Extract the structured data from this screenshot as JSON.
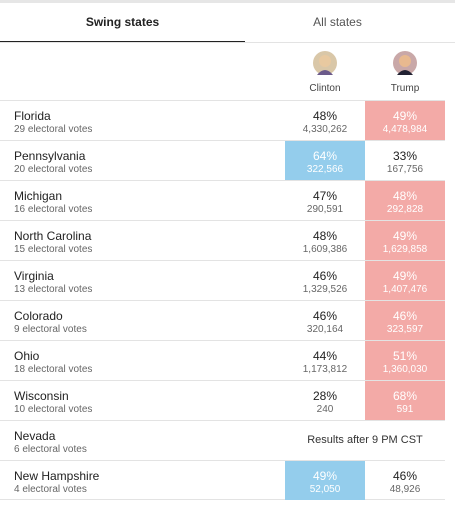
{
  "tabs": [
    "Swing states",
    "All states"
  ],
  "candidates": [
    "Clinton",
    "Trump"
  ],
  "rows": [
    {
      "state": "Florida",
      "electoral": "29 electoral votes",
      "clinton": {
        "pct": "48%",
        "votes": "4,330,262"
      },
      "trump": {
        "pct": "49%",
        "votes": "4,478,984"
      }
    },
    {
      "state": "Pennsylvania",
      "electoral": "20 electoral votes",
      "clinton": {
        "pct": "64%",
        "votes": "322,566"
      },
      "trump": {
        "pct": "33%",
        "votes": "167,756"
      }
    },
    {
      "state": "Michigan",
      "electoral": "16 electoral votes",
      "clinton": {
        "pct": "47%",
        "votes": "290,591"
      },
      "trump": {
        "pct": "48%",
        "votes": "292,828"
      }
    },
    {
      "state": "North Carolina",
      "electoral": "15 electoral votes",
      "clinton": {
        "pct": "48%",
        "votes": "1,609,386"
      },
      "trump": {
        "pct": "49%",
        "votes": "1,629,858"
      }
    },
    {
      "state": "Virginia",
      "electoral": "13 electoral votes",
      "clinton": {
        "pct": "46%",
        "votes": "1,329,526"
      },
      "trump": {
        "pct": "49%",
        "votes": "1,407,476"
      }
    },
    {
      "state": "Colorado",
      "electoral": "9 electoral votes",
      "clinton": {
        "pct": "46%",
        "votes": "320,164"
      },
      "trump": {
        "pct": "46%",
        "votes": "323,597"
      }
    },
    {
      "state": "Ohio",
      "electoral": "18 electoral votes",
      "clinton": {
        "pct": "44%",
        "votes": "1,173,812"
      },
      "trump": {
        "pct": "51%",
        "votes": "1,360,030"
      }
    },
    {
      "state": "Wisconsin",
      "electoral": "10 electoral votes",
      "clinton": {
        "pct": "28%",
        "votes": "240"
      },
      "trump": {
        "pct": "68%",
        "votes": "591"
      }
    },
    {
      "state": "Nevada",
      "electoral": "6 electoral votes",
      "note": "Results after 9 PM CST"
    },
    {
      "state": "New Hampshire",
      "electoral": "4 electoral votes",
      "clinton": {
        "pct": "49%",
        "votes": "52,050"
      },
      "trump": {
        "pct": "46%",
        "votes": "48,926"
      }
    }
  ]
}
